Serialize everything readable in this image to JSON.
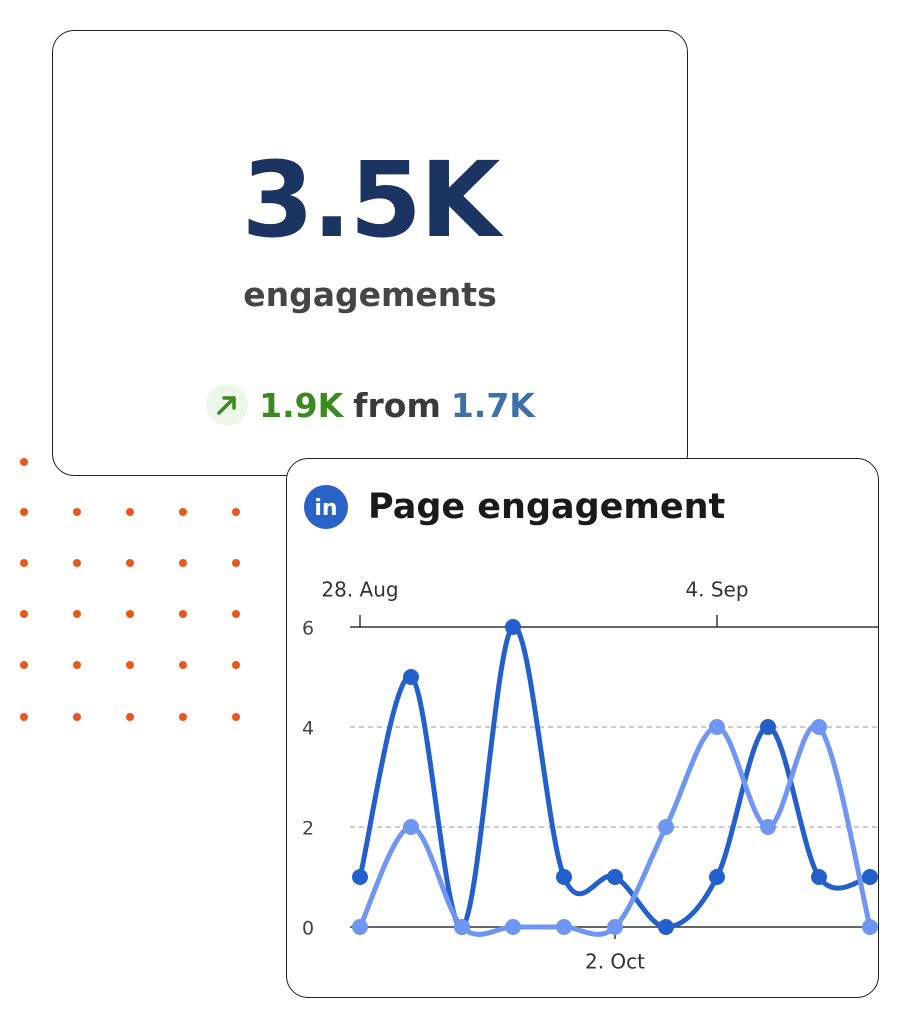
{
  "stat": {
    "value": "3.5K",
    "label": "engagements",
    "change": "1.9K",
    "from_word": "from",
    "previous": "1.7K"
  },
  "chart_data": {
    "type": "line",
    "title": "Page engagement",
    "logo": "in",
    "categories": [
      "28. Aug",
      null,
      null,
      null,
      null,
      null,
      null,
      "4. Sep",
      null,
      null,
      null
    ],
    "bottom_categories": [
      null,
      null,
      null,
      null,
      null,
      "2. Oct",
      null,
      null,
      null,
      null,
      null
    ],
    "series": [
      {
        "color": "#2360cc",
        "values": [
          1,
          5,
          0,
          6,
          1,
          1,
          0,
          1,
          4,
          1,
          1
        ]
      },
      {
        "color": "#6f96f2",
        "values": [
          0,
          2,
          0,
          0,
          0,
          0,
          2,
          4,
          2,
          4,
          0
        ]
      }
    ],
    "ylim": [
      0,
      6
    ],
    "yticks": [
      0,
      2,
      4,
      6
    ],
    "grid": true
  }
}
